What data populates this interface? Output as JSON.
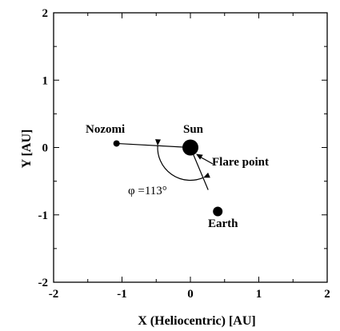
{
  "chart_data": {
    "type": "scatter",
    "xlabel": "X (Heliocentric) [AU]",
    "ylabel": "Y [AU]",
    "xlim": [
      -2,
      2
    ],
    "ylim": [
      -2,
      2
    ],
    "xticks": [
      "-2",
      "-1",
      "0",
      "1",
      "2"
    ],
    "yticks": [
      "-2",
      "-1",
      "0",
      "1",
      "2"
    ],
    "grid": false,
    "points": [
      {
        "label": "Nozomi",
        "x": -1.08,
        "y": 0.06,
        "size": "small"
      },
      {
        "label": "Sun",
        "x": 0.0,
        "y": 0.0,
        "size": "large"
      },
      {
        "label": "Earth",
        "x": 0.4,
        "y": -0.95,
        "size": "medium"
      }
    ],
    "annotations": {
      "flare_point": "Flare point",
      "angle": "φ =113°"
    }
  }
}
